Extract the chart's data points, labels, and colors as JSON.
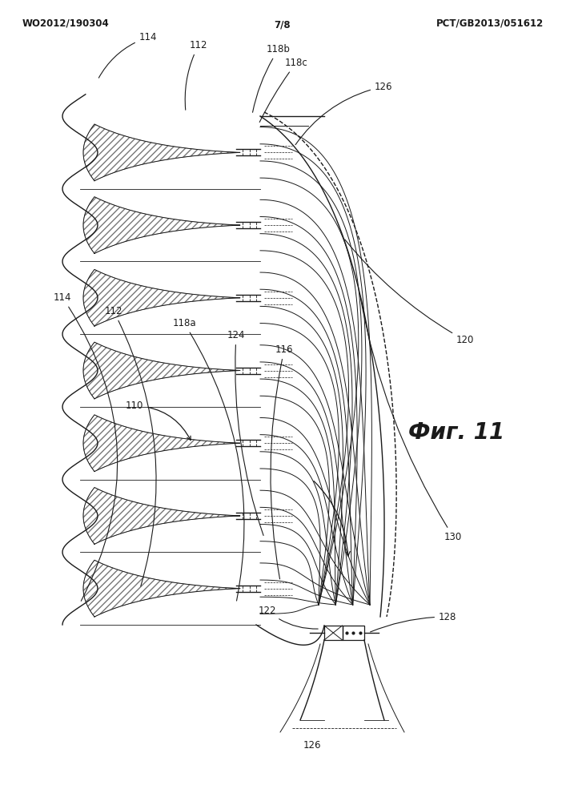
{
  "title_left": "WO2012/190304",
  "title_right": "PCT/GB2013/051612",
  "page_num": "7/8",
  "fig_label": "Фиг. 11",
  "labels": {
    "114_top": "114",
    "112_top": "112",
    "118b": "118b",
    "118c": "118c",
    "126_top": "126",
    "120": "120",
    "114_bot": "114",
    "112_bot": "112",
    "118a": "118a",
    "124": "124",
    "116": "116",
    "110": "110",
    "122": "122",
    "128": "128",
    "130": "130",
    "126_bot": "126"
  },
  "bg_color": "#ffffff",
  "line_color": "#1a1a1a"
}
